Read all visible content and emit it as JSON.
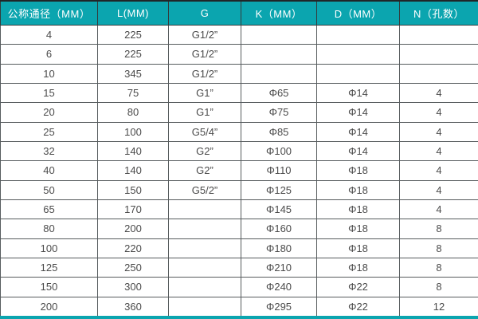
{
  "colors": {
    "header_bg": "#0ba5af",
    "header_text": "#ffffff",
    "grid_line": "#575c5e",
    "cell_text": "#4b4b4b",
    "bottom_bar": "#0ba5af",
    "row_bg": "#ffffff"
  },
  "chart_data": {
    "type": "table",
    "title": "",
    "columns": [
      "公称通径（MM）",
      "L(MM)",
      "G",
      "K（MM）",
      "D（MM）",
      "N（孔数）"
    ],
    "rows": [
      [
        "4",
        "225",
        "G1/2”",
        "",
        "",
        ""
      ],
      [
        "6",
        "225",
        "G1/2”",
        "",
        "",
        ""
      ],
      [
        "10",
        "345",
        "G1/2”",
        "",
        "",
        ""
      ],
      [
        "15",
        "75",
        "G1”",
        "Φ65",
        "Φ14",
        "4"
      ],
      [
        "20",
        "80",
        "G1”",
        "Φ75",
        "Φ14",
        "4"
      ],
      [
        "25",
        "100",
        "G5/4”",
        "Φ85",
        "Φ14",
        "4"
      ],
      [
        "32",
        "140",
        "G2”",
        "Φ100",
        "Φ14",
        "4"
      ],
      [
        "40",
        "140",
        "G2”",
        "Φ110",
        "Φ18",
        "4"
      ],
      [
        "50",
        "150",
        "G5/2”",
        "Φ125",
        "Φ18",
        "4"
      ],
      [
        "65",
        "170",
        "",
        "Φ145",
        "Φ18",
        "4"
      ],
      [
        "80",
        "200",
        "",
        "Φ160",
        "Φ18",
        "8"
      ],
      [
        "100",
        "220",
        "",
        "Φ180",
        "Φ18",
        "8"
      ],
      [
        "125",
        "250",
        "",
        "Φ210",
        "Φ18",
        "8"
      ],
      [
        "150",
        "300",
        "",
        "Φ240",
        "Φ22",
        "8"
      ],
      [
        "200",
        "360",
        "",
        "Φ295",
        "Φ22",
        "12"
      ]
    ]
  }
}
